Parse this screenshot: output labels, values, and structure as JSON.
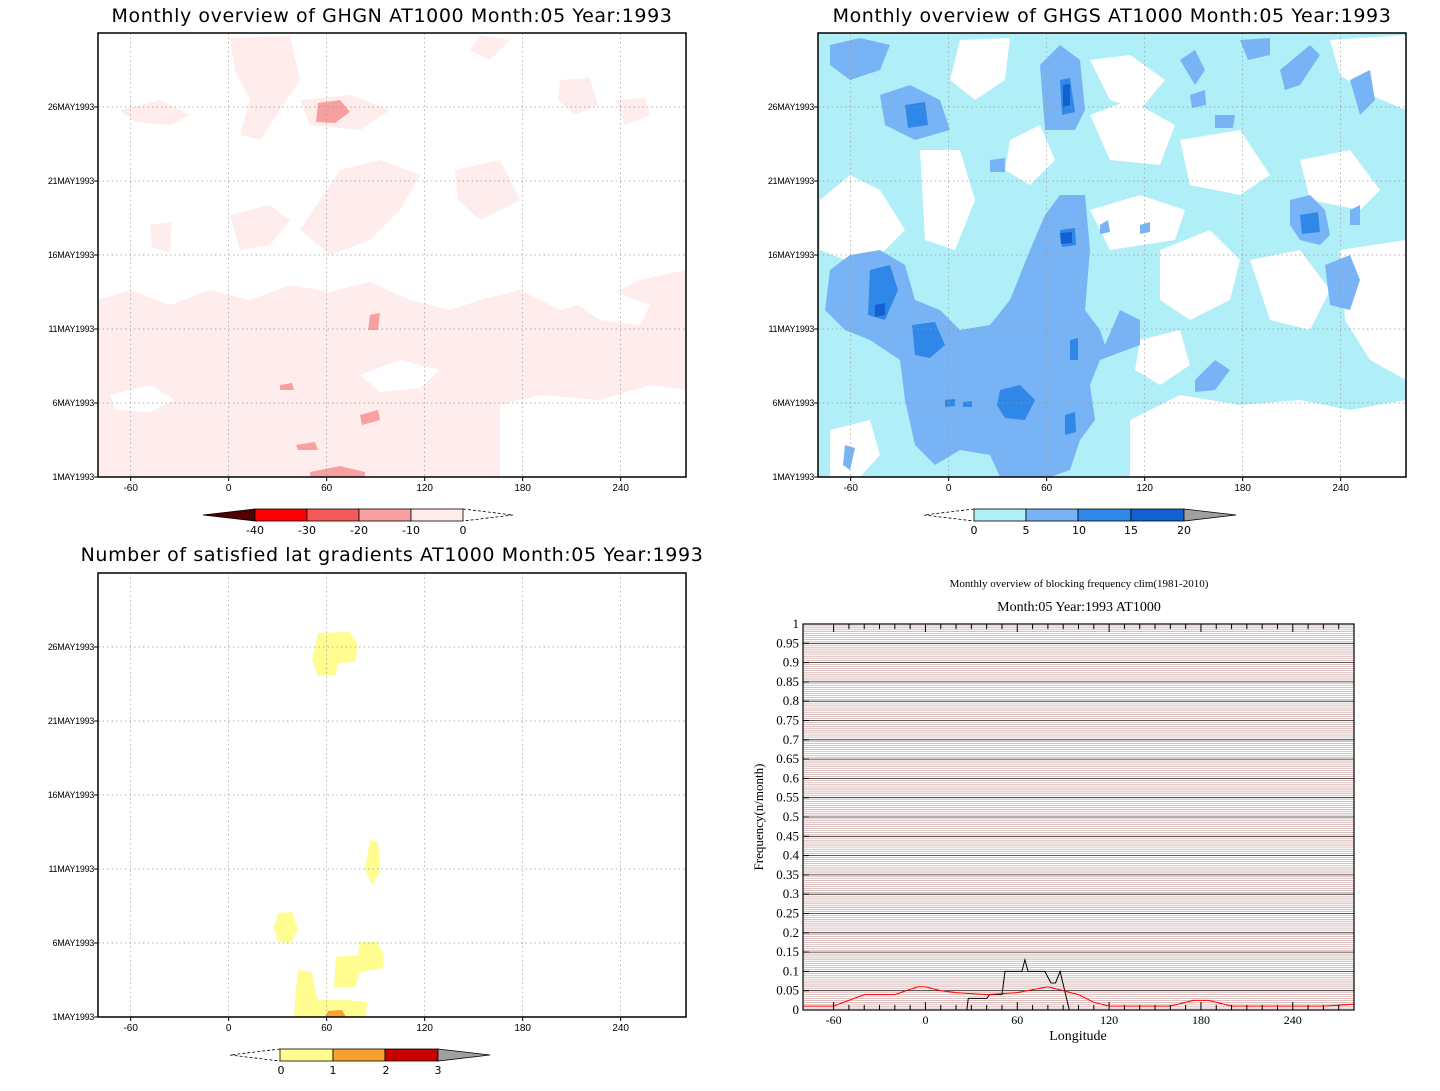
{
  "chart_data": [
    {
      "type": "heatmap",
      "title": "Monthly overview of GHGN AT1000 Month:05 Year:1993",
      "x_ticks": [
        "-60",
        "0",
        "60",
        "120",
        "180",
        "240"
      ],
      "y_ticks": [
        "1MAY1993",
        "6MAY1993",
        "11MAY1993",
        "16MAY1993",
        "21MAY1993",
        "26MAY1993"
      ],
      "xlim": [
        -80,
        280
      ],
      "colorbar": {
        "labels": [
          "-40",
          "-30",
          "-20",
          "-10",
          "0"
        ],
        "colors": [
          "#500000",
          "#ff0000",
          "#f55a5a",
          "#f8a0a0",
          "#ffecec"
        ]
      }
    },
    {
      "type": "heatmap",
      "title": "Monthly overview of GHGS AT1000 Month:05 Year:1993",
      "x_ticks": [
        "-60",
        "0",
        "60",
        "120",
        "180",
        "240"
      ],
      "y_ticks": [
        "1MAY1993",
        "6MAY1993",
        "11MAY1993",
        "16MAY1993",
        "21MAY1993",
        "26MAY1993"
      ],
      "xlim": [
        -80,
        280
      ],
      "colorbar": {
        "labels": [
          "0",
          "5",
          "10",
          "15",
          "20"
        ],
        "colors": [
          "#b0eef8",
          "#78b4f5",
          "#2f88e8",
          "#1560d0",
          "#a0a0a0"
        ]
      }
    },
    {
      "type": "heatmap",
      "title": "Number of satisfied lat gradients AT1000 Month:05 Year:1993",
      "x_ticks": [
        "-60",
        "0",
        "60",
        "120",
        "180",
        "240"
      ],
      "y_ticks": [
        "1MAY1993",
        "6MAY1993",
        "11MAY1993",
        "16MAY1993",
        "21MAY1993",
        "26MAY1993"
      ],
      "xlim": [
        -80,
        280
      ],
      "colorbar": {
        "labels": [
          "0",
          "1",
          "2",
          "3"
        ],
        "colors": [
          "#fffc90",
          "#f8a030",
          "#c80000",
          "#a0a0a0"
        ]
      }
    },
    {
      "type": "line",
      "title": "Monthly overview of blocking frequency clim(1981-2010)",
      "subtitle": "Month:05 Year:1993  AT1000",
      "xlabel": "Longitude",
      "ylabel": "Frequency(n/month)",
      "xlim": [
        -80,
        280
      ],
      "ylim": [
        0,
        1
      ],
      "x_ticks": [
        "-60",
        "0",
        "60",
        "120",
        "180",
        "240"
      ],
      "y_ticks": [
        "0",
        "0.05",
        "0.1",
        "0.15",
        "0.2",
        "0.25",
        "0.3",
        "0.35",
        "0.4",
        "0.45",
        "0.5",
        "0.55",
        "0.6",
        "0.65",
        "0.7",
        "0.75",
        "0.8",
        "0.85",
        "0.9",
        "0.95",
        "1"
      ],
      "series": [
        {
          "color": "#000000",
          "x": [
            -80,
            27,
            28,
            40,
            42,
            50,
            52,
            63,
            65,
            67,
            69,
            78,
            82,
            85,
            88,
            94,
            100,
            280
          ],
          "y": [
            0,
            0,
            0.03,
            0.03,
            0.04,
            0.04,
            0.1,
            0.1,
            0.13,
            0.1,
            0.1,
            0.1,
            0.07,
            0.07,
            0.1,
            0,
            0,
            0
          ]
        },
        {
          "color": "#ff0000",
          "x": [
            -80,
            -60,
            -40,
            -20,
            -5,
            0,
            10,
            20,
            40,
            60,
            80,
            100,
            110,
            120,
            130,
            160,
            175,
            185,
            200,
            220,
            240,
            260,
            280
          ],
          "y": [
            0.01,
            0.01,
            0.04,
            0.04,
            0.06,
            0.06,
            0.05,
            0.045,
            0.04,
            0.045,
            0.06,
            0.04,
            0.02,
            0.01,
            0.01,
            0.01,
            0.025,
            0.025,
            0.01,
            0.01,
            0.01,
            0.01,
            0.015
          ]
        }
      ]
    }
  ]
}
